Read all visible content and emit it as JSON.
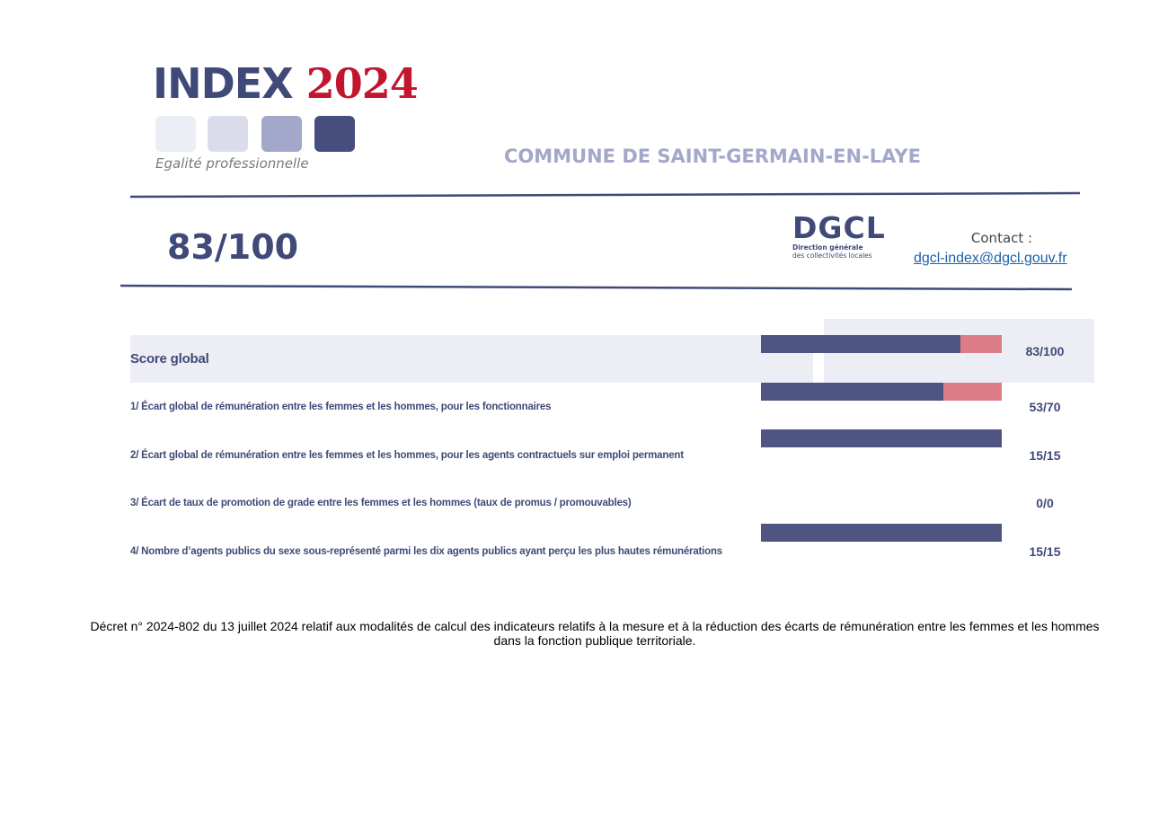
{
  "header": {
    "logo_title": "INDEX",
    "logo_year": "2024",
    "logo_tagline": "Egalité professionnelle",
    "logo_colors": [
      "#eceef5",
      "#dadcea",
      "#a3a7c9",
      "#464e7d"
    ],
    "commune": "COMMUNE DE SAINT-GERMAIN-EN-LAYE"
  },
  "summary": {
    "score": "83/100",
    "dgcl_logo": "DGCL",
    "dgcl_sub1": "Direction générale",
    "dgcl_sub2": "des collectivités locales",
    "contact_label": "Contact :",
    "contact_email": "dgcl-index@dgcl.gouv.fr"
  },
  "colors": {
    "points_obtained": "#4f5583",
    "points_lost": "#dd7d87",
    "band": "#edeef5"
  },
  "indicators": [
    {
      "label": "Score global",
      "value": "83/100",
      "obtained": 83,
      "max": 100
    },
    {
      "label": "1/ Écart global de rémunération entre les femmes et les hommes, pour les fonctionnaires",
      "value": "53/70",
      "obtained": 53,
      "max": 70
    },
    {
      "label": "2/ Écart global de rémunération entre les femmes et les hommes, pour les agents contractuels sur emploi permanent",
      "value": "15/15",
      "obtained": 15,
      "max": 15
    },
    {
      "label": "3/ Écart de taux de promotion de grade entre les femmes et les hommes (taux de promus / promouvables)",
      "value": "0/0",
      "obtained": 0,
      "max": 0
    },
    {
      "label": "4/ Nombre d’agents publics du sexe sous-représenté parmi les dix agents publics ayant perçu les plus hautes rémunérations",
      "value": "15/15",
      "obtained": 15,
      "max": 15
    }
  ],
  "footer": {
    "line1": "Décret n° 2024-802 du 13 juillet 2024 relatif aux modalités de calcul des indicateurs relatifs à la mesure et à la réduction des écarts de rémunération entre les femmes et les hommes",
    "line2": "dans la fonction publique territoriale."
  }
}
